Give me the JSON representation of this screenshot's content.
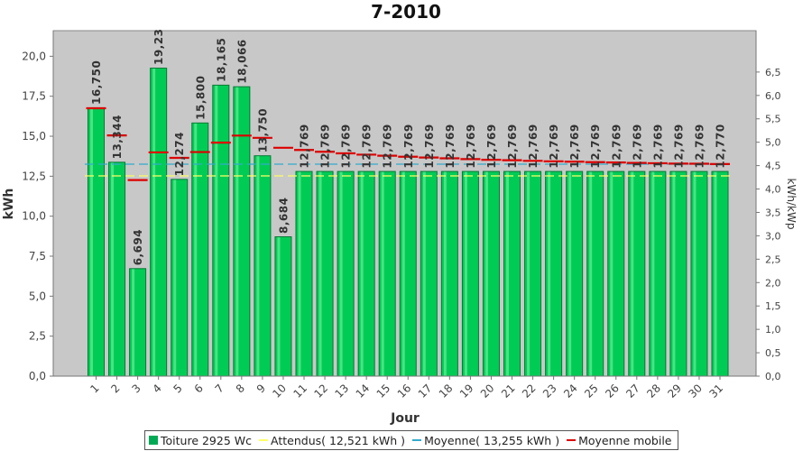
{
  "chart_data": {
    "type": "bar",
    "title": "7-2010",
    "xlabel": "Jour",
    "ylabel": "kWh",
    "y2label": "kWh/kWp",
    "categories": [
      "1",
      "2",
      "3",
      "4",
      "5",
      "6",
      "7",
      "8",
      "9",
      "10",
      "11",
      "12",
      "13",
      "14",
      "15",
      "16",
      "17",
      "18",
      "19",
      "20",
      "21",
      "22",
      "23",
      "24",
      "25",
      "26",
      "27",
      "28",
      "29",
      "30",
      "31"
    ],
    "ylim": [
      0,
      21.6
    ],
    "yticks": [
      "0,0",
      "2,5",
      "5,0",
      "7,5",
      "10,0",
      "12,5",
      "15,0",
      "17,5",
      "20,0"
    ],
    "y2ticks": [
      "0,0",
      "0,5",
      "1,0",
      "1,5",
      "2,0",
      "2,5",
      "3,0",
      "3,5",
      "4,0",
      "4,5",
      "5,0",
      "5,5",
      "6,0",
      "6,5"
    ],
    "grid": false,
    "series": [
      {
        "name": "Toiture 2925 Wc",
        "kind": "bar",
        "color": "#00cc55",
        "values": [
          16.75,
          13.344,
          6.694,
          19.23,
          12.274,
          15.8,
          18.165,
          18.066,
          13.75,
          8.684,
          12.769,
          12.769,
          12.769,
          12.769,
          12.769,
          12.769,
          12.769,
          12.769,
          12.769,
          12.769,
          12.769,
          12.769,
          12.769,
          12.769,
          12.769,
          12.769,
          12.769,
          12.769,
          12.769,
          12.769,
          12.77
        ]
      },
      {
        "name": "Attendus( 12,521 kWh )",
        "kind": "hline",
        "color": "#ffff66",
        "value": 12.521
      },
      {
        "name": "Moyenne( 13,255 kWh )",
        "kind": "hline",
        "color": "#33aacc",
        "value": 13.255
      },
      {
        "name": "Moyenne mobile",
        "kind": "step",
        "color": "#dd0000",
        "values": [
          16.75,
          15.05,
          12.26,
          13.99,
          13.65,
          14.01,
          14.6,
          15.04,
          14.9,
          14.28,
          14.14,
          14.03,
          13.93,
          13.85,
          13.78,
          13.72,
          13.67,
          13.62,
          13.57,
          13.53,
          13.5,
          13.46,
          13.43,
          13.41,
          13.38,
          13.36,
          13.33,
          13.31,
          13.29,
          13.28,
          13.26
        ]
      }
    ],
    "data_labels": [
      "16,750",
      "13,344",
      "6,694",
      "19,23",
      "12,274",
      "15,800",
      "18,165",
      "18,066",
      "13,750",
      "8,684",
      "12,769",
      "12,769",
      "12,769",
      "12,769",
      "12,769",
      "12,769",
      "12,769",
      "12,769",
      "12,769",
      "12,769",
      "12,769",
      "12,769",
      "12,769",
      "12,769",
      "12,769",
      "12,769",
      "12,769",
      "12,769",
      "12,769",
      "12,769",
      "12,770"
    ],
    "legend": {
      "position": "bottom",
      "entries": [
        "Toiture 2925 Wc",
        "Attendus( 12,521 kWh )",
        "Moyenne( 13,255 kWh )",
        "Moyenne mobile"
      ]
    }
  }
}
